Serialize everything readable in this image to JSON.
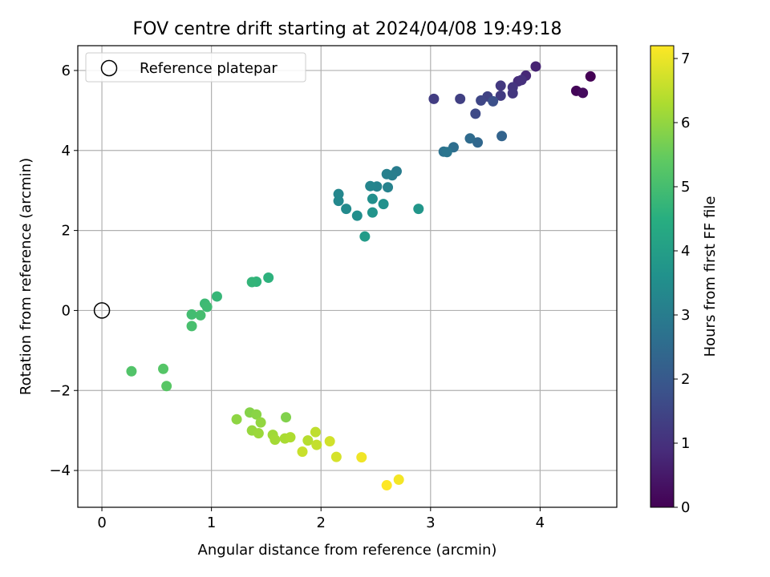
{
  "chart_data": {
    "type": "scatter",
    "title": "FOV centre drift starting at 2024/04/08 19:49:18",
    "xlabel": "Angular distance from reference (arcmin)",
    "ylabel": "Rotation from reference (arcmin)",
    "xlim": [
      -0.22,
      4.7
    ],
    "ylim": [
      -4.92,
      6.62
    ],
    "x_ticks": [
      0,
      1,
      2,
      3,
      4
    ],
    "y_ticks": [
      -4,
      -2,
      0,
      2,
      4,
      6
    ],
    "grid": true,
    "legend": {
      "placement": "top-left",
      "entries": [
        "Reference platepar"
      ]
    },
    "reference_point": {
      "x": 0,
      "y": 0
    },
    "colorbar": {
      "label": "Hours from first FF file",
      "range": [
        0,
        7.2
      ],
      "ticks": [
        0,
        1,
        2,
        3,
        4,
        5,
        6,
        7
      ],
      "colormap": "viridis"
    },
    "points": [
      {
        "x": 4.46,
        "y": 5.85,
        "t": 0.0
      },
      {
        "x": 4.33,
        "y": 5.49,
        "t": 0.1
      },
      {
        "x": 4.39,
        "y": 5.44,
        "t": 0.2
      },
      {
        "x": 3.96,
        "y": 6.1,
        "t": 0.7
      },
      {
        "x": 3.87,
        "y": 5.87,
        "t": 0.8
      },
      {
        "x": 3.8,
        "y": 5.73,
        "t": 0.9
      },
      {
        "x": 3.83,
        "y": 5.76,
        "t": 1.0
      },
      {
        "x": 3.75,
        "y": 5.58,
        "t": 1.1
      },
      {
        "x": 3.75,
        "y": 5.43,
        "t": 1.15
      },
      {
        "x": 3.64,
        "y": 5.62,
        "t": 1.2
      },
      {
        "x": 3.64,
        "y": 5.37,
        "t": 1.25
      },
      {
        "x": 3.03,
        "y": 5.29,
        "t": 1.3
      },
      {
        "x": 3.27,
        "y": 5.29,
        "t": 1.35
      },
      {
        "x": 3.52,
        "y": 5.35,
        "t": 1.4
      },
      {
        "x": 3.46,
        "y": 5.25,
        "t": 1.5
      },
      {
        "x": 3.41,
        "y": 4.92,
        "t": 1.6
      },
      {
        "x": 3.57,
        "y": 5.23,
        "t": 1.75
      },
      {
        "x": 3.65,
        "y": 4.36,
        "t": 2.3
      },
      {
        "x": 3.43,
        "y": 4.2,
        "t": 2.4
      },
      {
        "x": 3.36,
        "y": 4.3,
        "t": 2.5
      },
      {
        "x": 3.21,
        "y": 4.08,
        "t": 2.6
      },
      {
        "x": 3.12,
        "y": 3.97,
        "t": 2.7
      },
      {
        "x": 3.15,
        "y": 3.96,
        "t": 2.8
      },
      {
        "x": 2.69,
        "y": 3.48,
        "t": 3.0
      },
      {
        "x": 2.65,
        "y": 3.38,
        "t": 3.05
      },
      {
        "x": 2.6,
        "y": 3.41,
        "t": 3.1
      },
      {
        "x": 2.61,
        "y": 3.08,
        "t": 3.15
      },
      {
        "x": 2.51,
        "y": 3.1,
        "t": 3.2
      },
      {
        "x": 2.45,
        "y": 3.11,
        "t": 3.25
      },
      {
        "x": 2.16,
        "y": 2.91,
        "t": 3.3
      },
      {
        "x": 2.16,
        "y": 2.74,
        "t": 3.35
      },
      {
        "x": 2.23,
        "y": 2.54,
        "t": 3.4
      },
      {
        "x": 2.33,
        "y": 2.37,
        "t": 3.5
      },
      {
        "x": 2.47,
        "y": 2.79,
        "t": 3.55
      },
      {
        "x": 2.57,
        "y": 2.66,
        "t": 3.6
      },
      {
        "x": 2.47,
        "y": 2.45,
        "t": 3.7
      },
      {
        "x": 2.89,
        "y": 2.54,
        "t": 3.75
      },
      {
        "x": 2.4,
        "y": 1.85,
        "t": 3.9
      },
      {
        "x": 1.52,
        "y": 0.82,
        "t": 4.6
      },
      {
        "x": 1.41,
        "y": 0.72,
        "t": 4.65
      },
      {
        "x": 1.37,
        "y": 0.71,
        "t": 4.7
      },
      {
        "x": 1.05,
        "y": 0.35,
        "t": 4.75
      },
      {
        "x": 0.94,
        "y": 0.17,
        "t": 4.85
      },
      {
        "x": 0.96,
        "y": 0.09,
        "t": 4.9
      },
      {
        "x": 0.82,
        "y": -0.1,
        "t": 4.95
      },
      {
        "x": 0.9,
        "y": -0.12,
        "t": 5.0
      },
      {
        "x": 0.82,
        "y": -0.39,
        "t": 5.05
      },
      {
        "x": 0.27,
        "y": -1.52,
        "t": 5.2
      },
      {
        "x": 0.56,
        "y": -1.46,
        "t": 5.25
      },
      {
        "x": 0.59,
        "y": -1.89,
        "t": 5.3
      },
      {
        "x": 1.68,
        "y": -2.67,
        "t": 5.8
      },
      {
        "x": 1.35,
        "y": -2.55,
        "t": 5.85
      },
      {
        "x": 1.41,
        "y": -2.6,
        "t": 5.9
      },
      {
        "x": 1.23,
        "y": -2.72,
        "t": 5.95
      },
      {
        "x": 1.45,
        "y": -2.8,
        "t": 6.0
      },
      {
        "x": 1.37,
        "y": -3.0,
        "t": 6.05
      },
      {
        "x": 1.43,
        "y": -3.07,
        "t": 6.1
      },
      {
        "x": 1.56,
        "y": -3.11,
        "t": 6.15
      },
      {
        "x": 1.58,
        "y": -3.23,
        "t": 6.2
      },
      {
        "x": 1.67,
        "y": -3.2,
        "t": 6.25
      },
      {
        "x": 1.72,
        "y": -3.17,
        "t": 6.3
      },
      {
        "x": 1.88,
        "y": -3.25,
        "t": 6.4
      },
      {
        "x": 1.95,
        "y": -3.04,
        "t": 6.5
      },
      {
        "x": 1.96,
        "y": -3.36,
        "t": 6.55
      },
      {
        "x": 1.83,
        "y": -3.53,
        "t": 6.6
      },
      {
        "x": 2.08,
        "y": -3.27,
        "t": 6.7
      },
      {
        "x": 2.14,
        "y": -3.66,
        "t": 6.75
      },
      {
        "x": 2.37,
        "y": -3.67,
        "t": 7.05
      },
      {
        "x": 2.71,
        "y": -4.23,
        "t": 7.1
      },
      {
        "x": 2.6,
        "y": -4.37,
        "t": 7.2
      }
    ]
  }
}
